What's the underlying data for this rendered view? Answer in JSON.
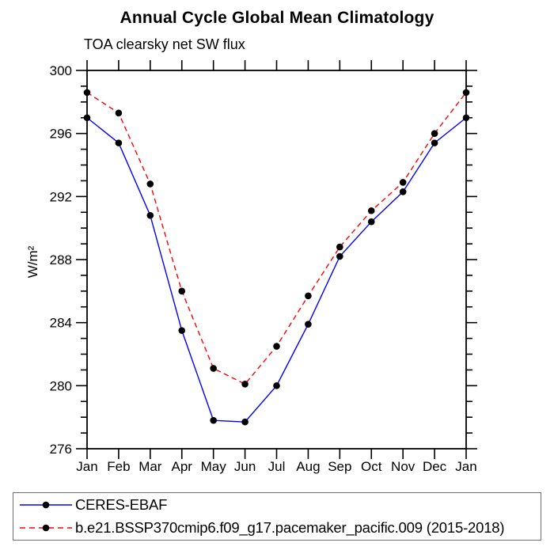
{
  "colors": {
    "background": "#ffffff",
    "axis": "#000000",
    "marker": "#000000",
    "ceres_line": "#0000ff",
    "model_line": "#ff0000",
    "legend_border": "#6e6e6e"
  },
  "chart_data": {
    "type": "line",
    "title": "Annual Cycle Global Mean Climatology",
    "subtitle": "TOA clearsky net SW flux",
    "ylabel": "W/m²",
    "xlabel": "",
    "ylim": [
      276,
      300
    ],
    "ytick_major_step": 4,
    "ytick_minor_step": 1,
    "ytick_major_labels": [
      "276",
      "280",
      "284",
      "288",
      "292",
      "296",
      "300"
    ],
    "grid": false,
    "legend_position": "bottom-box",
    "x_categories": [
      "Jan",
      "Feb",
      "Mar",
      "Apr",
      "May",
      "Jun",
      "Jul",
      "Aug",
      "Sep",
      "Oct",
      "Nov",
      "Dec",
      "Jan"
    ],
    "series": [
      {
        "name": "CERES-EBAF",
        "color": "#0000ff",
        "line_style": "solid",
        "marker": "filled-circle",
        "values": [
          297.0,
          295.4,
          290.8,
          283.5,
          277.8,
          277.7,
          280.0,
          283.9,
          288.2,
          290.4,
          292.3,
          295.4,
          297.0
        ]
      },
      {
        "name": "b.e21.BSSP370cmip6.f09_g17.pacemaker_pacific.009 (2015-2018)",
        "color": "#ff0000",
        "line_style": "dashed",
        "marker": "filled-circle",
        "values": [
          298.6,
          297.3,
          292.8,
          286.0,
          281.1,
          280.1,
          282.5,
          285.7,
          288.8,
          291.1,
          292.9,
          296.0,
          298.6
        ]
      }
    ]
  }
}
